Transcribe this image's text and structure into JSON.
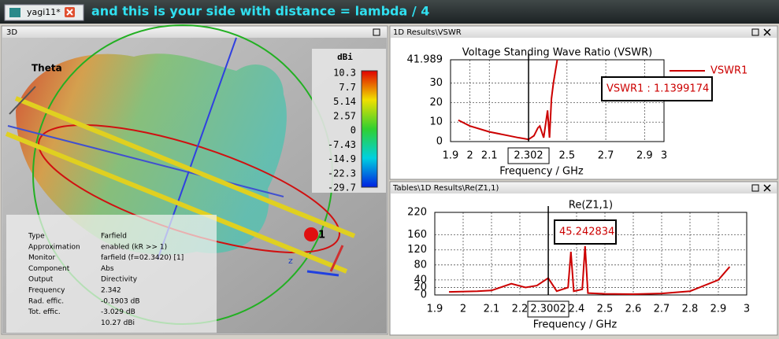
{
  "tab": {
    "label": "yagi11*"
  },
  "banner": "and this is your side with distance = lambda / 4",
  "panel_3d": {
    "title": "3D",
    "axis_label": "Theta",
    "port_label": "1",
    "z_label": "z",
    "legend": {
      "unit": "dBi",
      "ticks": [
        10.3,
        7.7,
        5.14,
        2.57,
        0,
        -7.43,
        -14.9,
        -22.3,
        -29.7
      ]
    },
    "info": [
      {
        "label": "Type",
        "value": "Farfield"
      },
      {
        "label": "Approximation",
        "value": "enabled (kR >> 1)"
      },
      {
        "label": "Monitor",
        "value": "farfield (f=02.3420) [1]"
      },
      {
        "label": "Component",
        "value": "Abs"
      },
      {
        "label": "Output",
        "value": "Directivity"
      },
      {
        "label": "Frequency",
        "value": "2.342"
      },
      {
        "label": "Rad. effic.",
        "value": "-0.1903 dB"
      },
      {
        "label": "Tot. effic.",
        "value": "-3.029 dB"
      },
      {
        "value": "10.27 dBi"
      }
    ]
  },
  "panels": [
    "1D Results\\VSWR",
    "Tables\\1D Results\\Re(Z1,1)"
  ],
  "chart_data": [
    {
      "type": "line",
      "title": "Voltage Standing Wave Ratio (VSWR)",
      "xlabel": "Frequency / GHz",
      "x": [
        1.94,
        2.0,
        2.1,
        2.2,
        2.25,
        2.302,
        2.33,
        2.35,
        2.36,
        2.38,
        2.4,
        2.41,
        2.42,
        2.43,
        2.45
      ],
      "series": [
        {
          "name": "VSWR1",
          "color": "#cc0000",
          "values": [
            11,
            8,
            5,
            3,
            2,
            1.14,
            3,
            7,
            8,
            2,
            16,
            2,
            22,
            30,
            41.989
          ]
        }
      ],
      "xlim": [
        1.9,
        3
      ],
      "xticks": [
        1.9,
        2,
        2.1,
        2.5,
        2.7,
        2.9,
        3
      ],
      "ylim": [
        0,
        41.989
      ],
      "yticks": [
        0,
        10,
        20,
        30,
        41.989
      ],
      "grid": true,
      "legend": "right",
      "marker_x": 2.302,
      "annotation": "VSWR1 : 1.1399174"
    },
    {
      "type": "line",
      "title": "Re(Z1,1)",
      "xlabel": "Frequency / GHz",
      "x": [
        1.95,
        2.05,
        2.1,
        2.17,
        2.22,
        2.26,
        2.3,
        2.33,
        2.37,
        2.38,
        2.39,
        2.42,
        2.43,
        2.44,
        2.5,
        2.6,
        2.7,
        2.8,
        2.9,
        2.94
      ],
      "color": "#cc0000",
      "values": [
        8,
        10,
        12,
        30,
        20,
        25,
        45,
        10,
        20,
        115,
        10,
        15,
        130,
        5,
        3,
        2,
        4,
        10,
        40,
        75
      ],
      "xlim": [
        1.9,
        3
      ],
      "xticks": [
        1.9,
        2,
        2.1,
        2.2,
        2.4,
        2.5,
        2.6,
        2.7,
        2.8,
        2.9,
        3
      ],
      "ylim": [
        0,
        220
      ],
      "yticks": [
        0,
        20,
        40,
        80,
        120,
        160,
        220
      ],
      "grid": true,
      "marker_x": 2.3002,
      "annotation": 45.242834
    }
  ]
}
